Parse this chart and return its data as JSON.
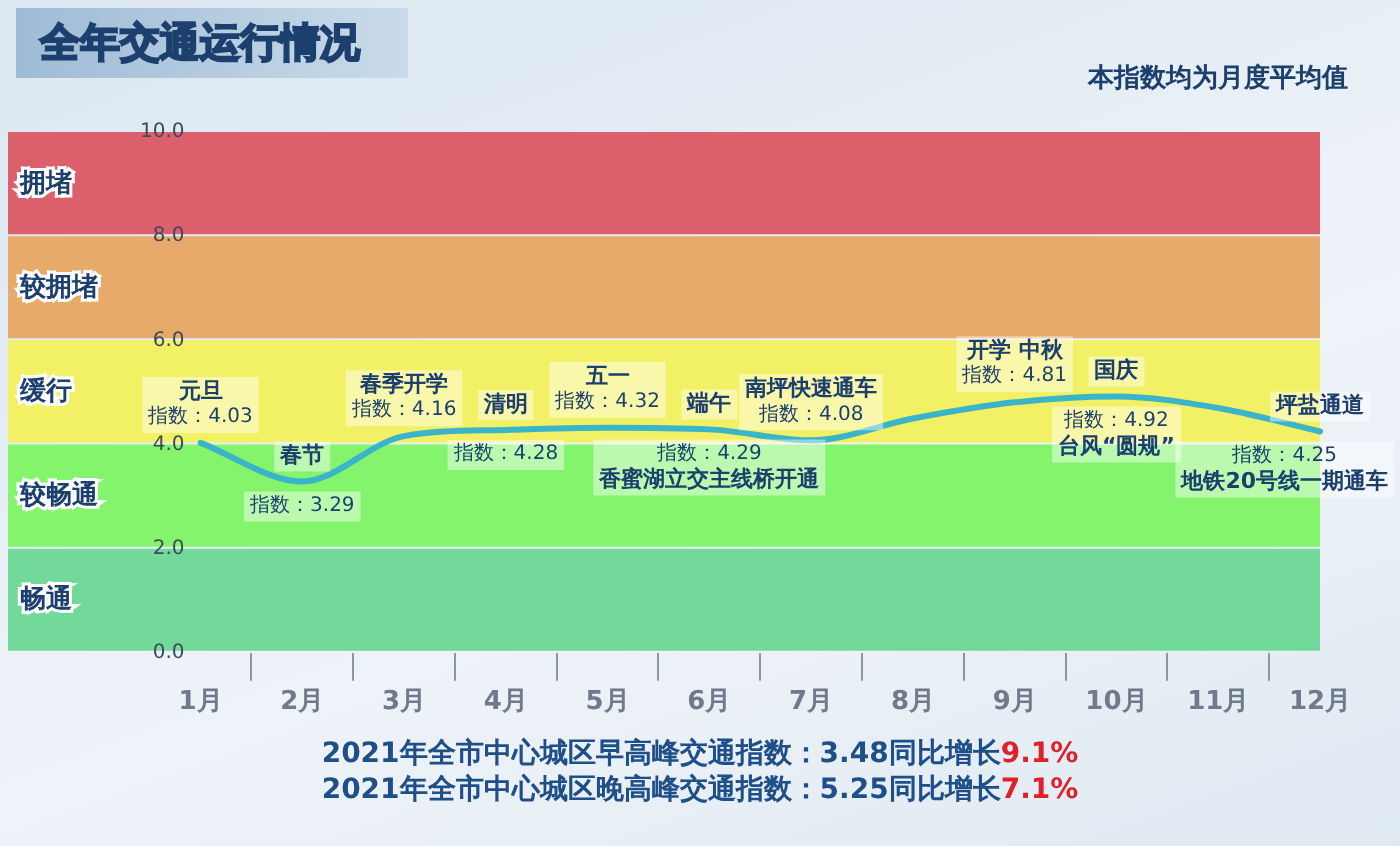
{
  "chart_data": {
    "type": "line",
    "title": "全年交通运行情况",
    "subtitle": "本指数均为月度平均值",
    "categories": [
      "1月",
      "2月",
      "3月",
      "4月",
      "5月",
      "6月",
      "7月",
      "8月",
      "9月",
      "10月",
      "11月",
      "12月"
    ],
    "series": [
      {
        "color": "#3ab4c8",
        "values": [
          4.03,
          3.29,
          4.16,
          4.28,
          4.32,
          4.29,
          4.08,
          4.5,
          4.81,
          4.92,
          4.7,
          4.25
        ],
        "value_labels": [
          "指数：4.03",
          "指数：3.29",
          "指数：4.16",
          "指数：4.28",
          "指数：4.32",
          "指数：4.29",
          "指数：4.08",
          null,
          "指数：4.81",
          "指数：4.92",
          null,
          "指数：4.25"
        ]
      }
    ],
    "ylim": [
      0,
      10
    ],
    "yticks": [
      {
        "value": 0,
        "label": "0.0"
      },
      {
        "value": 2,
        "label": "2.0"
      },
      {
        "value": 4,
        "label": "4.0"
      },
      {
        "value": 6,
        "label": "6.0"
      },
      {
        "value": 8,
        "label": "8.0"
      },
      {
        "value": 10,
        "label": "10.0"
      }
    ],
    "marker": "none",
    "line_style": "solid",
    "legend": false,
    "grid": false,
    "bands": [
      {
        "axis": "y",
        "from": 0,
        "to": 2,
        "label": "畅通",
        "color": "#72d99a"
      },
      {
        "axis": "y",
        "from": 2,
        "to": 4,
        "label": "较畅通",
        "color": "#84f46c"
      },
      {
        "axis": "y",
        "from": 4,
        "to": 6,
        "label": "缓行",
        "color": "#f2f064"
      },
      {
        "axis": "y",
        "from": 6,
        "to": 8,
        "label": "较拥堵",
        "color": "#e8aa6a"
      },
      {
        "axis": "y",
        "from": 8,
        "to": 10,
        "label": "拥堵",
        "color": "#dc5f6c"
      }
    ],
    "annotations": [
      {
        "text": "元旦",
        "x": "1月",
        "y": 4.03
      },
      {
        "text": "春节",
        "x": "2月",
        "y": 3.29
      },
      {
        "text": "春季开学",
        "x": "3月",
        "y": 4.16
      },
      {
        "text": "清明",
        "x": "4月",
        "y": 4.28
      },
      {
        "text": "五一",
        "x": "5月",
        "y": 4.32
      },
      {
        "text": "端午",
        "x": "6月",
        "y": 4.29
      },
      {
        "text": "香蜜湖立交主线桥开通",
        "x": "6月",
        "y": 4.29
      },
      {
        "text": "南坪快速通车",
        "x": "7月",
        "y": 4.08
      },
      {
        "text": "开学 中秋",
        "x": "9月",
        "y": 4.81
      },
      {
        "text": "国庆",
        "x": "10月",
        "y": 4.92
      },
      {
        "text": "台风“圆规”",
        "x": "10月",
        "y": 4.92
      },
      {
        "text": "坪盐通道",
        "x": "12月",
        "y": 4.25
      },
      {
        "text": "地铁20号线一期通车",
        "x": "12月",
        "y": 4.25
      },
      "2021年全市中心城区早高峰交通指数：3.48同比增长9.1%",
      "2021年全市中心城区晚高峰交通指数：5.25同比增长7.1%"
    ]
  }
}
